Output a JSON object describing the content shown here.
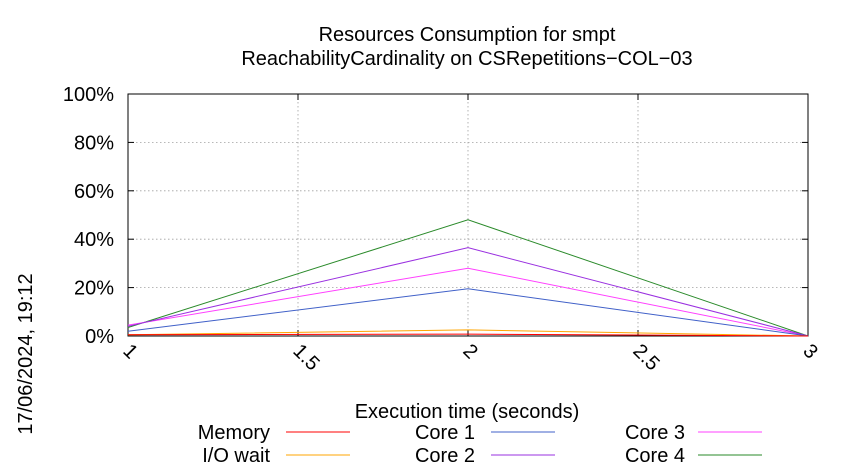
{
  "chart_data": {
    "type": "line",
    "title": "Resources Consumption for smpt",
    "subtitle": "ReachabilityCardinality on CSRepetitions−COL−03",
    "xlabel": "Execution time (seconds)",
    "ylabel": "",
    "timestamp": "17/06/2024, 19:12",
    "xlim": [
      1,
      3
    ],
    "ylim": [
      0,
      100
    ],
    "grid": true,
    "legend_position": "bottom",
    "x_ticks": [
      "1",
      "1.5",
      "2",
      "2.5",
      "3"
    ],
    "y_ticks": [
      "0%",
      "20%",
      "40%",
      "60%",
      "80%",
      "100%"
    ],
    "x": [
      1,
      2,
      3
    ],
    "series": [
      {
        "name": "Memory",
        "color": "#ff0000",
        "values": [
          0.5,
          0.8,
          0
        ]
      },
      {
        "name": "I/O wait",
        "color": "#ffa500",
        "values": [
          0.5,
          2.5,
          0
        ]
      },
      {
        "name": "Core 1",
        "color": "#4060c8",
        "values": [
          2,
          19.5,
          0
        ]
      },
      {
        "name": "Core 2",
        "color": "#9a30e0",
        "values": [
          4,
          36.5,
          0
        ]
      },
      {
        "name": "Core 3",
        "color": "#ff40ff",
        "values": [
          4.5,
          28,
          0
        ]
      },
      {
        "name": "Core 4",
        "color": "#2a8a2a",
        "values": [
          3.5,
          48,
          0
        ]
      }
    ]
  }
}
